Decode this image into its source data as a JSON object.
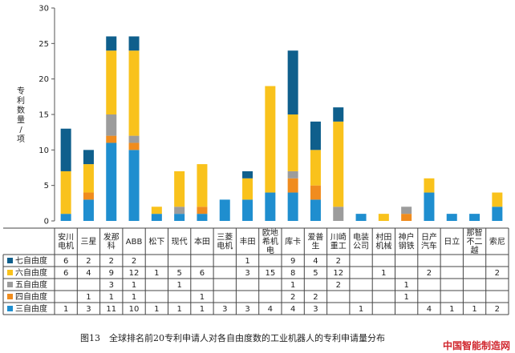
{
  "chart_data": {
    "type": "bar",
    "stacked": true,
    "ylabel": "专利数量/项",
    "ylim": [
      0,
      30
    ],
    "yticks": [
      0,
      5,
      10,
      15,
      20,
      25,
      30
    ],
    "grid": false,
    "legend_position": "table-left",
    "categories": [
      [
        "安川",
        "电机"
      ],
      [
        "三星"
      ],
      [
        "发那",
        "科"
      ],
      [
        "ABB"
      ],
      [
        "松下"
      ],
      [
        "现代"
      ],
      [
        "本田"
      ],
      [
        "三菱",
        "电机"
      ],
      [
        "丰田"
      ],
      [
        "欧地",
        "希机",
        "电"
      ],
      [
        "库卡"
      ],
      [
        "爱普",
        "生"
      ],
      [
        "川崎",
        "重工"
      ],
      [
        "电装",
        "公司"
      ],
      [
        "村田",
        "机械"
      ],
      [
        "神户",
        "钢铁"
      ],
      [
        "日产",
        "汽车"
      ],
      [
        "日立"
      ],
      [
        "那智",
        "不二",
        "越"
      ],
      [
        "索尼"
      ]
    ],
    "series": [
      {
        "name": "三自由度",
        "color": "#1f8ecf",
        "values": [
          1,
          3,
          11,
          10,
          1,
          1,
          1,
          3,
          3,
          4,
          4,
          3,
          0,
          1,
          0,
          0,
          4,
          1,
          1,
          2
        ]
      },
      {
        "name": "四自由度",
        "color": "#f08c1e",
        "values": [
          0,
          1,
          1,
          1,
          0,
          0,
          1,
          0,
          0,
          0,
          2,
          2,
          0,
          0,
          0,
          1,
          0,
          0,
          0,
          0
        ]
      },
      {
        "name": "五自由度",
        "color": "#9c9c9c",
        "values": [
          0,
          0,
          3,
          1,
          0,
          1,
          0,
          0,
          0,
          0,
          1,
          0,
          2,
          0,
          0,
          1,
          0,
          0,
          0,
          0
        ]
      },
      {
        "name": "六自由度",
        "color": "#f9c21c",
        "values": [
          6,
          4,
          9,
          12,
          1,
          5,
          6,
          0,
          3,
          15,
          8,
          5,
          12,
          0,
          1,
          0,
          2,
          0,
          0,
          2
        ]
      },
      {
        "name": "七自由度",
        "color": "#0f5f8c",
        "values": [
          6,
          2,
          2,
          2,
          0,
          0,
          0,
          0,
          1,
          0,
          9,
          4,
          2,
          0,
          0,
          0,
          0,
          0,
          0,
          0
        ]
      }
    ],
    "table": {
      "row_order": [
        "七自由度",
        "六自由度",
        "五自由度",
        "四自由度",
        "三自由度"
      ],
      "rows": [
        [
          "6",
          "2",
          "2",
          "2",
          "",
          "",
          "",
          "",
          "1",
          "",
          "9",
          "4",
          "2",
          "",
          "",
          "",
          "",
          "",
          "",
          ""
        ],
        [
          "6",
          "4",
          "9",
          "12",
          "1",
          "5",
          "6",
          "",
          "3",
          "15",
          "8",
          "5",
          "12",
          "",
          "1",
          "",
          "2",
          "",
          "",
          "2"
        ],
        [
          "",
          "",
          "3",
          "1",
          "",
          "1",
          "",
          "",
          "",
          "",
          "1",
          "",
          "2",
          "",
          "",
          "1",
          "",
          "",
          "",
          ""
        ],
        [
          "",
          "1",
          "1",
          "1",
          "",
          "",
          "1",
          "",
          "",
          "",
          "2",
          "2",
          "",
          "",
          "",
          "1",
          "",
          "",
          "",
          ""
        ],
        [
          "1",
          "3",
          "11",
          "10",
          "1",
          "1",
          "1",
          "3",
          "3",
          "4",
          "4",
          "3",
          "",
          "1",
          "",
          "",
          "4",
          "1",
          "1",
          "2"
        ]
      ]
    }
  },
  "caption": "图13　全球排名前20专利申请人对各自由度数的工业机器人的专利申请量分布",
  "watermark": "中国智能制造网"
}
